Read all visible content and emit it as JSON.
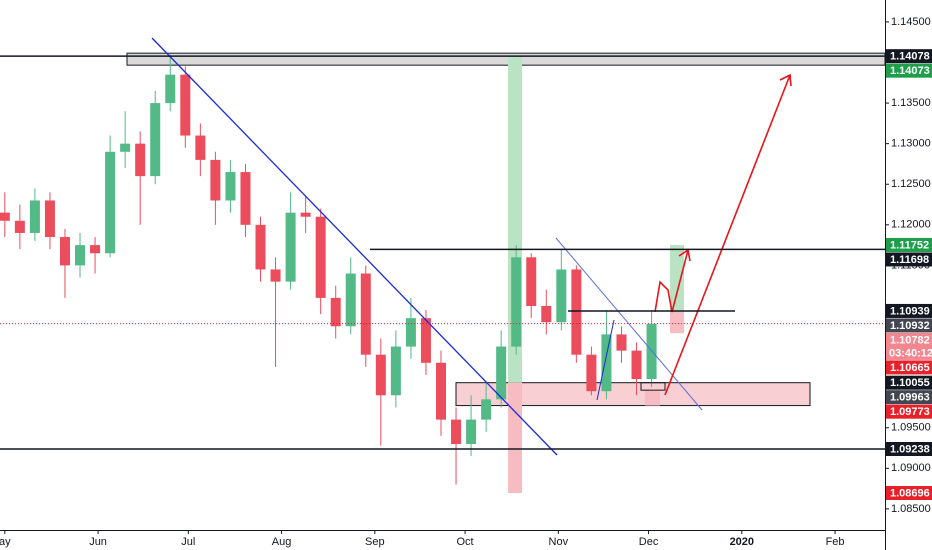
{
  "chart_data": {
    "type": "candlestick",
    "x": [
      0,
      5,
      10,
      15,
      20,
      25,
      30,
      35,
      40,
      45,
      50,
      55,
      60,
      65,
      70,
      75,
      80,
      85,
      90,
      95,
      100,
      105,
      110,
      115,
      120,
      125,
      130,
      135,
      140,
      145,
      150,
      155,
      160,
      165,
      170,
      175,
      180,
      185,
      190,
      195,
      200,
      205,
      210,
      215
    ],
    "open": [
      1.1215,
      1.1205,
      1.119,
      1.123,
      1.1185,
      1.115,
      1.1175,
      1.1165,
      1.129,
      1.13,
      1.126,
      1.135,
      1.1385,
      1.131,
      1.128,
      1.123,
      1.1265,
      1.12,
      1.1145,
      1.113,
      1.1215,
      1.121,
      1.111,
      1.1075,
      1.114,
      1.104,
      1.099,
      1.105,
      1.1085,
      1.103,
      1.096,
      1.093,
      1.096,
      1.0985,
      1.105,
      1.116,
      1.11,
      1.108,
      1.1145,
      1.104,
      1.0995,
      1.1065,
      1.1045,
      1.101
    ],
    "high": [
      1.124,
      1.1225,
      1.1245,
      1.124,
      1.1195,
      1.119,
      1.1185,
      1.131,
      1.134,
      1.1315,
      1.1365,
      1.141,
      1.1395,
      1.1325,
      1.129,
      1.128,
      1.1275,
      1.121,
      1.116,
      1.124,
      1.1235,
      1.122,
      1.1125,
      1.116,
      1.115,
      1.106,
      1.107,
      1.111,
      1.1095,
      1.1045,
      1.0975,
      1.099,
      1.1005,
      1.107,
      1.1175,
      1.1165,
      1.112,
      1.117,
      1.115,
      1.105,
      1.1095,
      1.1075,
      1.1055,
      1.1095
    ],
    "low": [
      1.1185,
      1.117,
      1.118,
      1.117,
      1.111,
      1.1135,
      1.114,
      1.116,
      1.127,
      1.12,
      1.125,
      1.134,
      1.1295,
      1.126,
      1.12,
      1.1215,
      1.1185,
      1.113,
      1.1025,
      1.112,
      1.119,
      1.109,
      1.106,
      1.1065,
      1.1025,
      1.0928,
      1.0975,
      1.1035,
      1.1015,
      1.094,
      1.088,
      1.0915,
      1.0945,
      1.0975,
      1.104,
      1.1085,
      1.1065,
      1.107,
      1.103,
      1.099,
      1.0985,
      1.103,
      1.099,
      1.1
    ],
    "close": [
      1.1205,
      1.119,
      1.123,
      1.1185,
      1.115,
      1.1175,
      1.1165,
      1.129,
      1.13,
      1.126,
      1.135,
      1.1385,
      1.131,
      1.128,
      1.123,
      1.1265,
      1.12,
      1.1145,
      1.113,
      1.1215,
      1.121,
      1.111,
      1.1075,
      1.114,
      1.104,
      1.099,
      1.105,
      1.1085,
      1.103,
      1.096,
      1.093,
      1.096,
      1.0985,
      1.105,
      1.116,
      1.11,
      1.108,
      1.1145,
      1.104,
      1.0995,
      1.1065,
      1.1045,
      1.101,
      1.1078
    ],
    "up_color": "#53b987",
    "down_color": "#eb4d5c",
    "xlim": [
      -1.6,
      292.6
    ],
    "ylim": [
      1.0824,
      1.1477
    ],
    "xticks": [
      {
        "value": 0,
        "label": "ay"
      },
      {
        "value": 31,
        "label": "Jun"
      },
      {
        "value": 61,
        "label": "Jul"
      },
      {
        "value": 92,
        "label": "Aug"
      },
      {
        "value": 123,
        "label": "Sep"
      },
      {
        "value": 153,
        "label": "Oct"
      },
      {
        "value": 184,
        "label": "Nov"
      },
      {
        "value": 214,
        "label": "Dec"
      },
      {
        "value": 245,
        "label": "2020"
      },
      {
        "value": 276,
        "label": "Feb"
      }
    ],
    "yticks": [
      {
        "value": 1.145,
        "label": "1.14500"
      },
      {
        "value": 1.135,
        "label": "1.13500"
      },
      {
        "value": 1.13,
        "label": "1.13000"
      },
      {
        "value": 1.125,
        "label": "1.12500"
      },
      {
        "value": 1.12,
        "label": "1.12000"
      },
      {
        "value": 1.115,
        "label": "1.11500"
      },
      {
        "value": 1.095,
        "label": "1.09500"
      },
      {
        "value": 1.09,
        "label": "1.09000"
      },
      {
        "value": 1.085,
        "label": "1.08500"
      }
    ],
    "price_labels": [
      {
        "value": 1.14078,
        "color": "#131722"
      },
      {
        "value": 1.14073,
        "color": "#1e9e4a"
      },
      {
        "value": 1.11752,
        "color": "#1e9e4a"
      },
      {
        "value": 1.11698,
        "color": "#131722"
      },
      {
        "value": 1.10939,
        "color": "#131722"
      },
      {
        "value": 1.10932,
        "color": "#434651"
      },
      {
        "value": 1.10782,
        "color": "#f4868f",
        "countdown": "03:40:12"
      },
      {
        "value": 1.10665,
        "color": "#e8202a"
      },
      {
        "value": 1.10055,
        "color": "#131722"
      },
      {
        "value": 1.09963,
        "color": "#434651"
      },
      {
        "value": 1.09773,
        "color": "#e8202a"
      },
      {
        "value": 1.09238,
        "color": "#131722"
      },
      {
        "value": 1.08696,
        "color": "#e8202a"
      }
    ]
  }
}
